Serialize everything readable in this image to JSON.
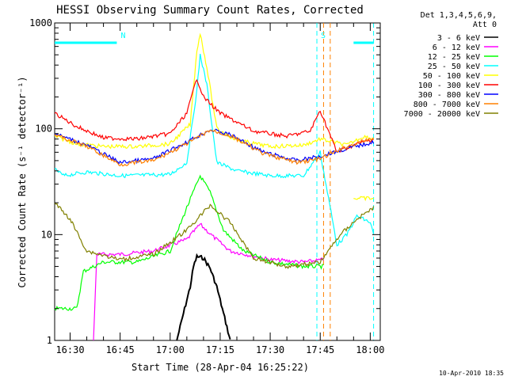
{
  "chart_data": {
    "type": "line",
    "title": "HESSI Observing Summary Count Rates, Corrected",
    "xlabel": "Start Time (28-Apr-04 16:25:22)",
    "ylabel": "Corrected Count Rate (s⁻¹ detector⁻¹)",
    "yscale": "log",
    "xlim": [
      "16:25:22",
      "18:03:00"
    ],
    "ylim": [
      1,
      1000
    ],
    "xticks": [
      "16:30",
      "16:45",
      "17:00",
      "17:15",
      "17:30",
      "17:45",
      "18:00"
    ],
    "yticks": [
      "1",
      "10",
      "100",
      "1000"
    ],
    "legend": {
      "position": "right",
      "header": [
        "Det 1,3,4,5,6,9,",
        "Att 0"
      ]
    },
    "series": [
      {
        "name": "3 - 6 keV",
        "color": "#000000",
        "points": [
          [
            "17:02",
            1
          ],
          [
            "17:04",
            1.8
          ],
          [
            "17:06",
            3.2
          ],
          [
            "17:07",
            5
          ],
          [
            "17:08",
            6.2
          ],
          [
            "17:10",
            6
          ],
          [
            "17:12",
            4.8
          ],
          [
            "17:14",
            3.2
          ],
          [
            "17:16",
            1.8
          ],
          [
            "17:18",
            1
          ]
        ]
      },
      {
        "name": "6 - 12 keV",
        "color": "#ff00ff",
        "points": [
          [
            "16:37",
            1
          ],
          [
            "16:38",
            6.5
          ],
          [
            "16:45",
            6.5
          ],
          [
            "16:55",
            7
          ],
          [
            "17:05",
            9
          ],
          [
            "17:09",
            12.5
          ],
          [
            "17:13",
            9.5
          ],
          [
            "17:18",
            7
          ],
          [
            "17:30",
            5.8
          ],
          [
            "17:40",
            5.5
          ],
          [
            "17:46",
            5.8
          ]
        ]
      },
      {
        "name": "12 - 25 keV",
        "color": "#00ff00",
        "points": [
          [
            "16:25:22",
            2
          ],
          [
            "16:32",
            2
          ],
          [
            "16:34",
            4.5
          ],
          [
            "16:40",
            5.5
          ],
          [
            "16:50",
            5.5
          ],
          [
            "17:00",
            7
          ],
          [
            "17:05",
            18
          ],
          [
            "17:09",
            36
          ],
          [
            "17:12",
            25
          ],
          [
            "17:16",
            11
          ],
          [
            "17:22",
            7
          ],
          [
            "17:30",
            5.5
          ],
          [
            "17:40",
            5
          ],
          [
            "17:46",
            5
          ]
        ]
      },
      {
        "name": "25 - 50 keV",
        "color": "#00ffff",
        "points": [
          [
            "16:25:22",
            42
          ],
          [
            "16:28",
            36
          ],
          [
            "16:35",
            39
          ],
          [
            "16:45",
            36
          ],
          [
            "17:00",
            37
          ],
          [
            "17:05",
            48
          ],
          [
            "17:08",
            230
          ],
          [
            "17:09",
            500
          ],
          [
            "17:11",
            260
          ],
          [
            "17:14",
            48
          ],
          [
            "17:20",
            40
          ],
          [
            "17:30",
            36
          ],
          [
            "17:40",
            36
          ],
          [
            "17:45",
            60
          ],
          [
            "17:50",
            8
          ],
          [
            "17:53",
            10
          ],
          [
            "17:56",
            15
          ],
          [
            "18:00",
            13
          ],
          [
            "18:01",
            10
          ]
        ]
      },
      {
        "name": "50 - 100 keV",
        "color": "#ffff00",
        "points": [
          [
            "16:25:22",
            85
          ],
          [
            "16:32",
            72
          ],
          [
            "16:40",
            68
          ],
          [
            "16:50",
            68
          ],
          [
            "17:00",
            72
          ],
          [
            "17:06",
            110
          ],
          [
            "17:08",
            550
          ],
          [
            "17:09",
            800
          ],
          [
            "17:11",
            380
          ],
          [
            "17:14",
            100
          ],
          [
            "17:20",
            78
          ],
          [
            "17:30",
            68
          ],
          [
            "17:40",
            70
          ],
          [
            "17:45",
            80
          ],
          [
            "17:53",
            70
          ],
          [
            "17:58",
            85
          ],
          [
            "18:01",
            80
          ],
          [
            "17:55",
            22
          ],
          [
            "18:01",
            22
          ]
        ]
      },
      {
        "name": "100 - 300 keV",
        "color": "#ff0000",
        "points": [
          [
            "16:25:22",
            140
          ],
          [
            "16:32",
            105
          ],
          [
            "16:40",
            82
          ],
          [
            "16:50",
            80
          ],
          [
            "17:00",
            90
          ],
          [
            "17:05",
            140
          ],
          [
            "17:08",
            300
          ],
          [
            "17:10",
            200
          ],
          [
            "17:15",
            140
          ],
          [
            "17:25",
            95
          ],
          [
            "17:35",
            85
          ],
          [
            "17:42",
            95
          ],
          [
            "17:45",
            150
          ],
          [
            "17:50",
            60
          ],
          [
            "17:55",
            70
          ],
          [
            "18:01",
            80
          ]
        ]
      },
      {
        "name": "300 - 800 keV",
        "color": "#0000ff",
        "points": [
          [
            "16:25:22",
            90
          ],
          [
            "16:35",
            70
          ],
          [
            "16:45",
            48
          ],
          [
            "16:55",
            52
          ],
          [
            "17:05",
            75
          ],
          [
            "17:12",
            98
          ],
          [
            "17:18",
            88
          ],
          [
            "17:28",
            60
          ],
          [
            "17:38",
            50
          ],
          [
            "17:45",
            55
          ],
          [
            "17:53",
            65
          ],
          [
            "18:01",
            75
          ]
        ]
      },
      {
        "name": "800 - 7000 keV",
        "color": "#ff8000",
        "points": [
          [
            "16:25:22",
            88
          ],
          [
            "16:35",
            68
          ],
          [
            "16:45",
            46
          ],
          [
            "16:55",
            50
          ],
          [
            "17:05",
            72
          ],
          [
            "17:12",
            97
          ],
          [
            "17:18",
            86
          ],
          [
            "17:28",
            58
          ],
          [
            "17:38",
            48
          ],
          [
            "17:45",
            52
          ],
          [
            "17:53",
            68
          ],
          [
            "18:01",
            82
          ]
        ]
      },
      {
        "name": "7000 - 20000 keV",
        "color": "#808000",
        "points": [
          [
            "16:25:22",
            20
          ],
          [
            "16:30",
            14
          ],
          [
            "16:35",
            7
          ],
          [
            "16:45",
            5.8
          ],
          [
            "16:55",
            6.5
          ],
          [
            "17:05",
            11
          ],
          [
            "17:12",
            19
          ],
          [
            "17:18",
            13
          ],
          [
            "17:25",
            6
          ],
          [
            "17:35",
            5
          ],
          [
            "17:45",
            5.5
          ],
          [
            "17:51",
            10
          ],
          [
            "17:56",
            14
          ],
          [
            "18:01",
            18
          ]
        ]
      }
    ],
    "annotations": [
      {
        "label": "N",
        "color": "#00ffff",
        "time": "16:44",
        "bar": [
          "16:25:22",
          "16:44"
        ],
        "level": 650
      },
      {
        "label": "S",
        "color": "#00ffff",
        "time": "17:44",
        "bar": [
          "17:55",
          "18:01"
        ],
        "level": 650
      }
    ],
    "markers": [
      {
        "time": "17:44",
        "color": "#00ffff"
      },
      {
        "time": "17:46",
        "color": "#ff8000"
      },
      {
        "time": "17:48",
        "color": "#ff8000"
      },
      {
        "time": "18:01",
        "color": "#00ffff"
      }
    ],
    "footer": "10-Apr-2010 18:35"
  }
}
